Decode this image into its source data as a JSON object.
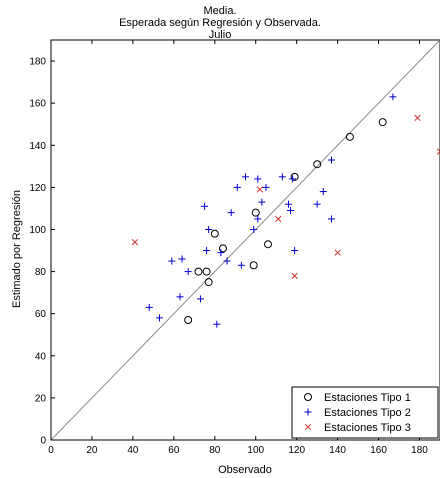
{
  "chart_data": {
    "type": "scatter",
    "title_lines": [
      "Media.",
      "Esperada según Regresión y Observada.",
      "Julio"
    ],
    "xlabel": "Observado",
    "ylabel": "Estimado por Regresión",
    "xlim": [
      0,
      190
    ],
    "ylim": [
      0,
      190
    ],
    "xticks": [
      0,
      20,
      40,
      60,
      80,
      100,
      120,
      140,
      160,
      180
    ],
    "yticks": [
      0,
      20,
      40,
      60,
      80,
      100,
      120,
      140,
      160,
      180
    ],
    "grid": false,
    "legend_position": "bottom-right",
    "reference_line": {
      "from": [
        0,
        0
      ],
      "to": [
        190,
        190
      ],
      "color": "#8c8c8c"
    },
    "series": [
      {
        "name": "Estaciones Tipo 1",
        "marker": "circle",
        "color": "#000000",
        "points": [
          [
            67,
            57
          ],
          [
            72,
            80
          ],
          [
            76,
            80
          ],
          [
            77,
            75
          ],
          [
            80,
            98
          ],
          [
            84,
            91
          ],
          [
            99,
            83
          ],
          [
            100,
            108
          ],
          [
            106,
            93
          ],
          [
            119,
            125
          ],
          [
            130,
            131
          ],
          [
            146,
            144
          ],
          [
            162,
            151
          ]
        ]
      },
      {
        "name": "Estaciones Tipo 2",
        "marker": "plus",
        "color": "#0000cc",
        "points": [
          [
            48,
            63
          ],
          [
            53,
            58
          ],
          [
            59,
            85
          ],
          [
            63,
            68
          ],
          [
            64,
            86
          ],
          [
            67,
            80
          ],
          [
            73,
            67
          ],
          [
            75,
            111
          ],
          [
            76,
            90
          ],
          [
            77,
            100
          ],
          [
            81,
            55
          ],
          [
            83,
            89
          ],
          [
            86,
            85
          ],
          [
            88,
            108
          ],
          [
            91,
            120
          ],
          [
            93,
            83
          ],
          [
            95,
            125
          ],
          [
            99,
            100
          ],
          [
            101,
            105
          ],
          [
            101,
            124
          ],
          [
            103,
            113
          ],
          [
            105,
            120
          ],
          [
            113,
            125
          ],
          [
            116,
            112
          ],
          [
            117,
            109
          ],
          [
            118,
            124
          ],
          [
            119,
            90
          ],
          [
            130,
            112
          ],
          [
            133,
            118
          ],
          [
            137,
            105
          ],
          [
            137,
            133
          ],
          [
            167,
            163
          ]
        ]
      },
      {
        "name": "Estaciones Tipo 3",
        "marker": "cross",
        "color": "#cc3333",
        "points": [
          [
            41,
            94
          ],
          [
            102,
            119
          ],
          [
            111,
            105
          ],
          [
            119,
            78
          ],
          [
            140,
            89
          ],
          [
            179,
            153
          ],
          [
            190,
            137
          ]
        ]
      }
    ]
  }
}
